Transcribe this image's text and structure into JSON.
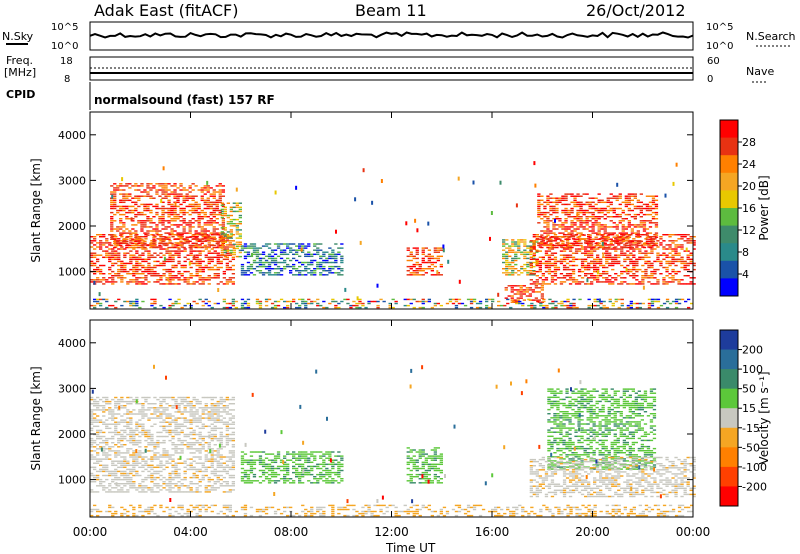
{
  "header": {
    "station": "Adak East (fitACF)",
    "beam": "Beam 11",
    "date": "26/Oct/2012"
  },
  "top_panels": {
    "noise_left_label": "N.Sky",
    "noise_right_label": "N.Search",
    "noise_left_ticks": [
      "10^5",
      "10^0"
    ],
    "noise_right_ticks": [
      "10^5",
      "10^0"
    ],
    "freq_label_line1": "Freq.",
    "freq_label_line2": "[MHz]",
    "freq_ticks": [
      "18",
      "8"
    ],
    "nave_label": "Nave",
    "nave_ticks": [
      "60",
      "0"
    ],
    "cpid_label": "CPID",
    "cpid_text": "normalsound (fast) 157 RF"
  },
  "power_colorbar": {
    "label": "Power [dB]",
    "ticks": [
      "28",
      "24",
      "20",
      "16",
      "12",
      "8",
      "4"
    ],
    "colors": [
      "#ff0000",
      "#e83212",
      "#ff8000",
      "#f5a623",
      "#e8c800",
      "#5dbb3f",
      "#3e8b6b",
      "#2a8a8a",
      "#1a52a8",
      "#0000ff"
    ]
  },
  "velocity_colorbar": {
    "label": "Velocity [m s⁻¹]",
    "ticks": [
      "200",
      "100",
      "50",
      "15",
      "-15",
      "-50",
      "-100",
      "-200"
    ],
    "colors": [
      "#1e3c9c",
      "#2a6e9a",
      "#3a8a6a",
      "#5cc83a",
      "#c8c8c0",
      "#f5a623",
      "#ff8000",
      "#ff4000",
      "#ff0000"
    ]
  },
  "chart_data": [
    {
      "type": "heatmap",
      "name": "power",
      "ylabel": "Slant Range [km]",
      "xlabel": "Time UT",
      "x_ticks": [
        "00:00",
        "04:00",
        "08:00",
        "12:00",
        "16:00",
        "20:00",
        "00:00"
      ],
      "y_ticks": [
        "1000",
        "2000",
        "3000",
        "4000"
      ],
      "xlim_hours": [
        0,
        24
      ],
      "ylim_km": [
        180,
        4500
      ],
      "echo_regions": [
        {
          "t0": 0.0,
          "t1": 5.7,
          "r0": 700,
          "r1": 1800,
          "level": "high"
        },
        {
          "t0": 0.8,
          "t1": 5.3,
          "r0": 1500,
          "r1": 2900,
          "level": "high"
        },
        {
          "t0": 5.2,
          "t1": 6.0,
          "r0": 1300,
          "r1": 2500,
          "level": "mid"
        },
        {
          "t0": 6.0,
          "t1": 10.0,
          "r0": 900,
          "r1": 1600,
          "level": "low"
        },
        {
          "t0": 12.6,
          "t1": 14.0,
          "r0": 900,
          "r1": 1500,
          "level": "high"
        },
        {
          "t0": 16.5,
          "t1": 18.0,
          "r0": 300,
          "r1": 700,
          "level": "high"
        },
        {
          "t0": 16.4,
          "t1": 17.8,
          "r0": 900,
          "r1": 1700,
          "level": "mid"
        },
        {
          "t0": 17.5,
          "t1": 24.0,
          "r0": 700,
          "r1": 1800,
          "level": "high"
        },
        {
          "t0": 17.8,
          "t1": 22.5,
          "r0": 1500,
          "r1": 2700,
          "level": "high"
        },
        {
          "t0": 0.0,
          "t1": 24.0,
          "r0": 180,
          "r1": 400,
          "level": "mixed"
        }
      ]
    },
    {
      "type": "heatmap",
      "name": "velocity",
      "ylabel": "Slant Range [km]",
      "xlabel": "Time UT",
      "x_ticks": [
        "00:00",
        "04:00",
        "08:00",
        "12:00",
        "16:00",
        "20:00",
        "00:00"
      ],
      "y_ticks": [
        "1000",
        "2000",
        "3000",
        "4000"
      ],
      "xlim_hours": [
        0,
        24
      ],
      "ylim_km": [
        180,
        4500
      ],
      "echo_regions": [
        {
          "t0": 0.0,
          "t1": 5.7,
          "r0": 700,
          "r1": 2800,
          "level": "ground"
        },
        {
          "t0": 6.0,
          "t1": 10.0,
          "r0": 900,
          "r1": 1600,
          "level": "positive"
        },
        {
          "t0": 12.6,
          "t1": 14.0,
          "r0": 900,
          "r1": 1700,
          "level": "positive"
        },
        {
          "t0": 18.2,
          "t1": 22.5,
          "r0": 1200,
          "r1": 3000,
          "level": "positive"
        },
        {
          "t0": 17.5,
          "t1": 24.0,
          "r0": 600,
          "r1": 1500,
          "level": "ground"
        },
        {
          "t0": 0.0,
          "t1": 24.0,
          "r0": 180,
          "r1": 450,
          "level": "negative"
        }
      ]
    }
  ]
}
